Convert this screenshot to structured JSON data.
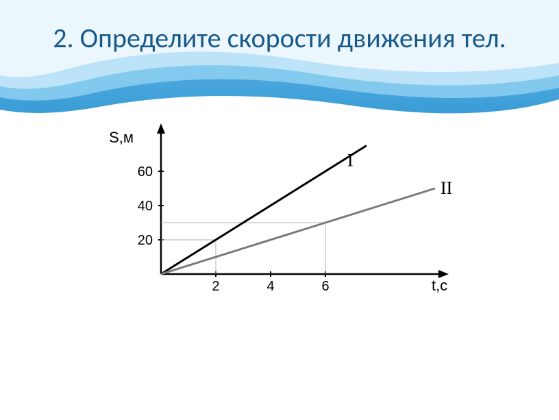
{
  "title": "2. Определите скорости движения тел.",
  "header": {
    "band_colors": [
      "#ffffff",
      "#a3d4f0",
      "#5bb5e8",
      "#3e9fd9"
    ],
    "title_color": "#1a5a8a",
    "title_fontsize": 40
  },
  "chart": {
    "type": "line",
    "background_color": "#ffffff",
    "axis_color": "#000000",
    "axis_width": 2.5,
    "grid_color": "#b0b0b0",
    "y_axis_label": "S,м",
    "x_axis_label": "t,с",
    "axis_label_fontsize": 22,
    "tick_fontsize": 20,
    "line_label_fontsize": 26,
    "x_ticks": [
      2,
      4,
      6
    ],
    "y_ticks": [
      20,
      40,
      60
    ],
    "xlim": [
      0,
      10
    ],
    "ylim": [
      0,
      80
    ],
    "series": [
      {
        "label": "I",
        "color": "#000000",
        "width": 3,
        "points": [
          [
            0,
            0
          ],
          [
            2,
            20
          ],
          [
            7.5,
            75
          ]
        ],
        "guide": {
          "x": 2,
          "y": 20
        }
      },
      {
        "label": "II",
        "color": "#7a7a7a",
        "width": 3,
        "points": [
          [
            0,
            0
          ],
          [
            6,
            30
          ],
          [
            10,
            50
          ]
        ],
        "guide": {
          "x": 6,
          "y": 30
        }
      }
    ]
  }
}
